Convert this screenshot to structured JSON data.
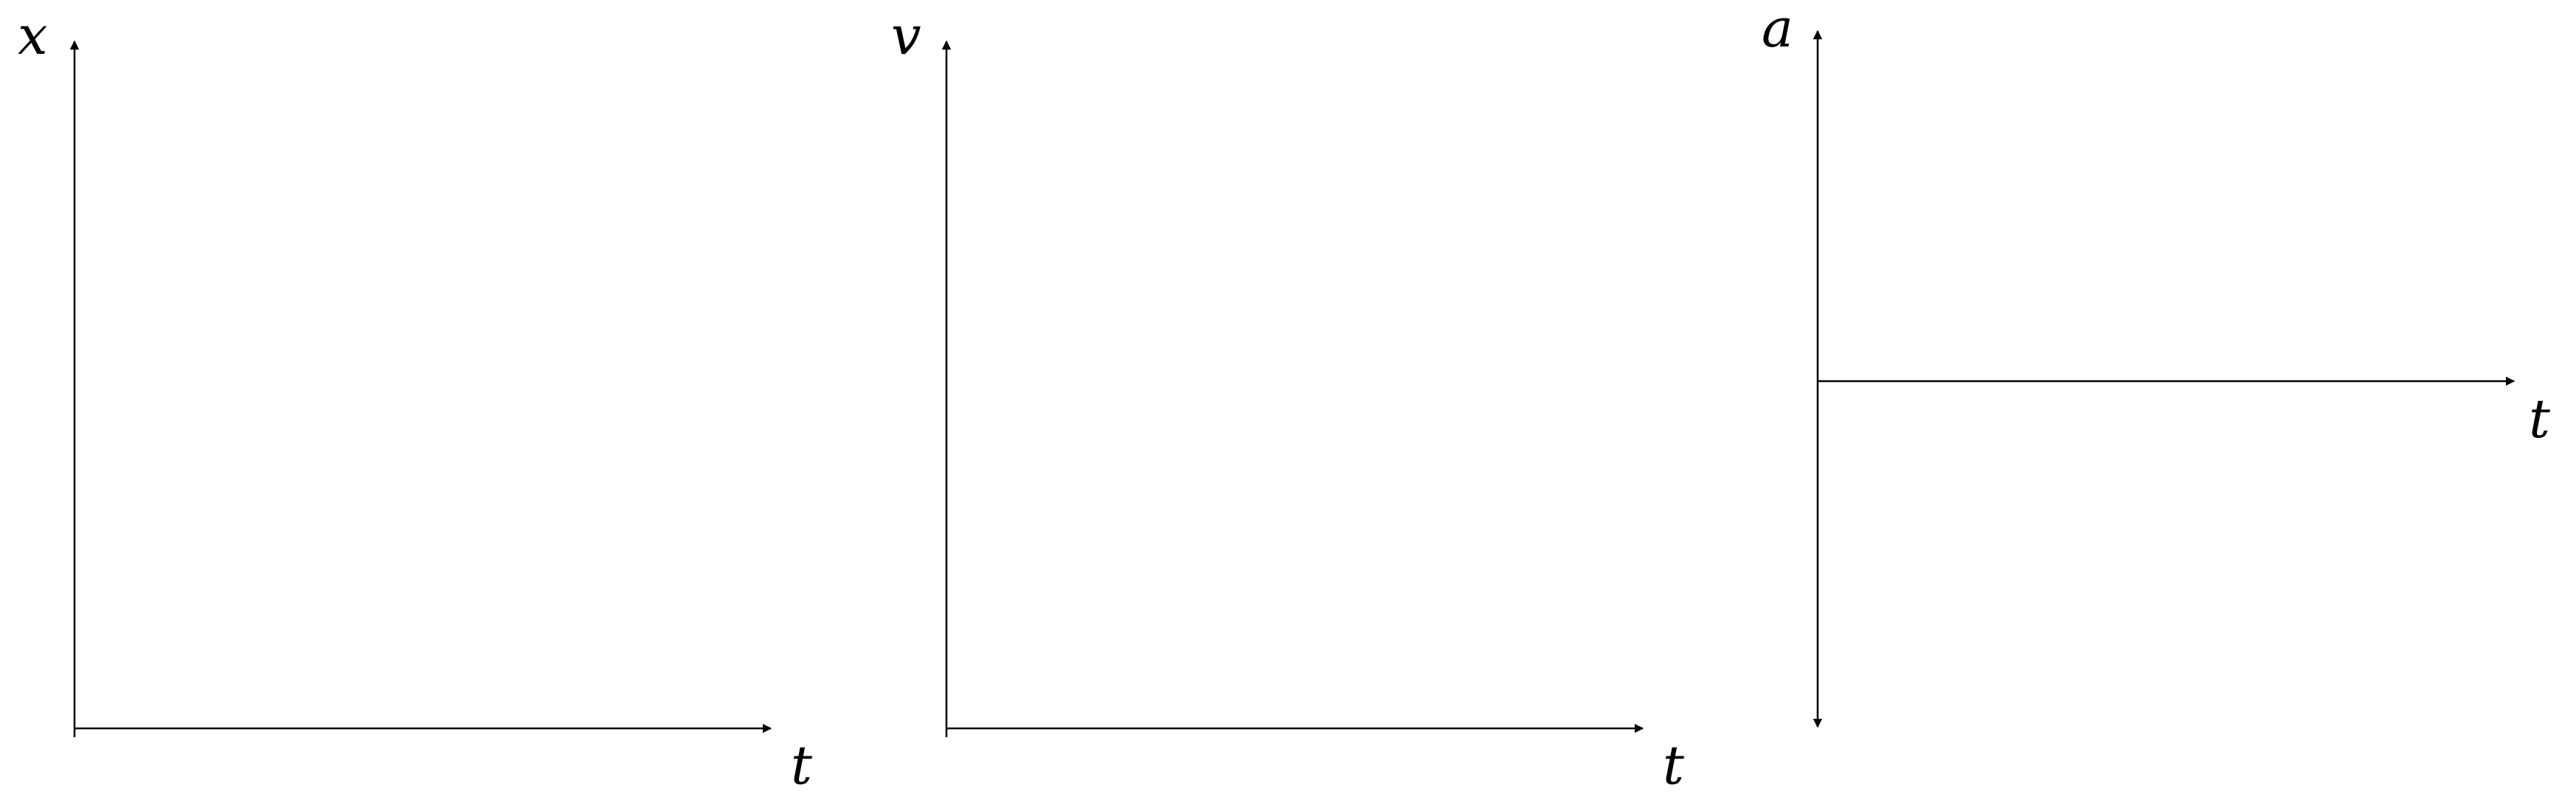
{
  "graphs": [
    {
      "id": "position-time",
      "y_label": "x",
      "x_label": "t"
    },
    {
      "id": "velocity-time",
      "y_label": "v",
      "x_label": "t"
    },
    {
      "id": "acceleration-time",
      "y_label": "a",
      "x_label": "t"
    }
  ],
  "style": {
    "axis_color": "#000000",
    "background": "#ffffff"
  }
}
